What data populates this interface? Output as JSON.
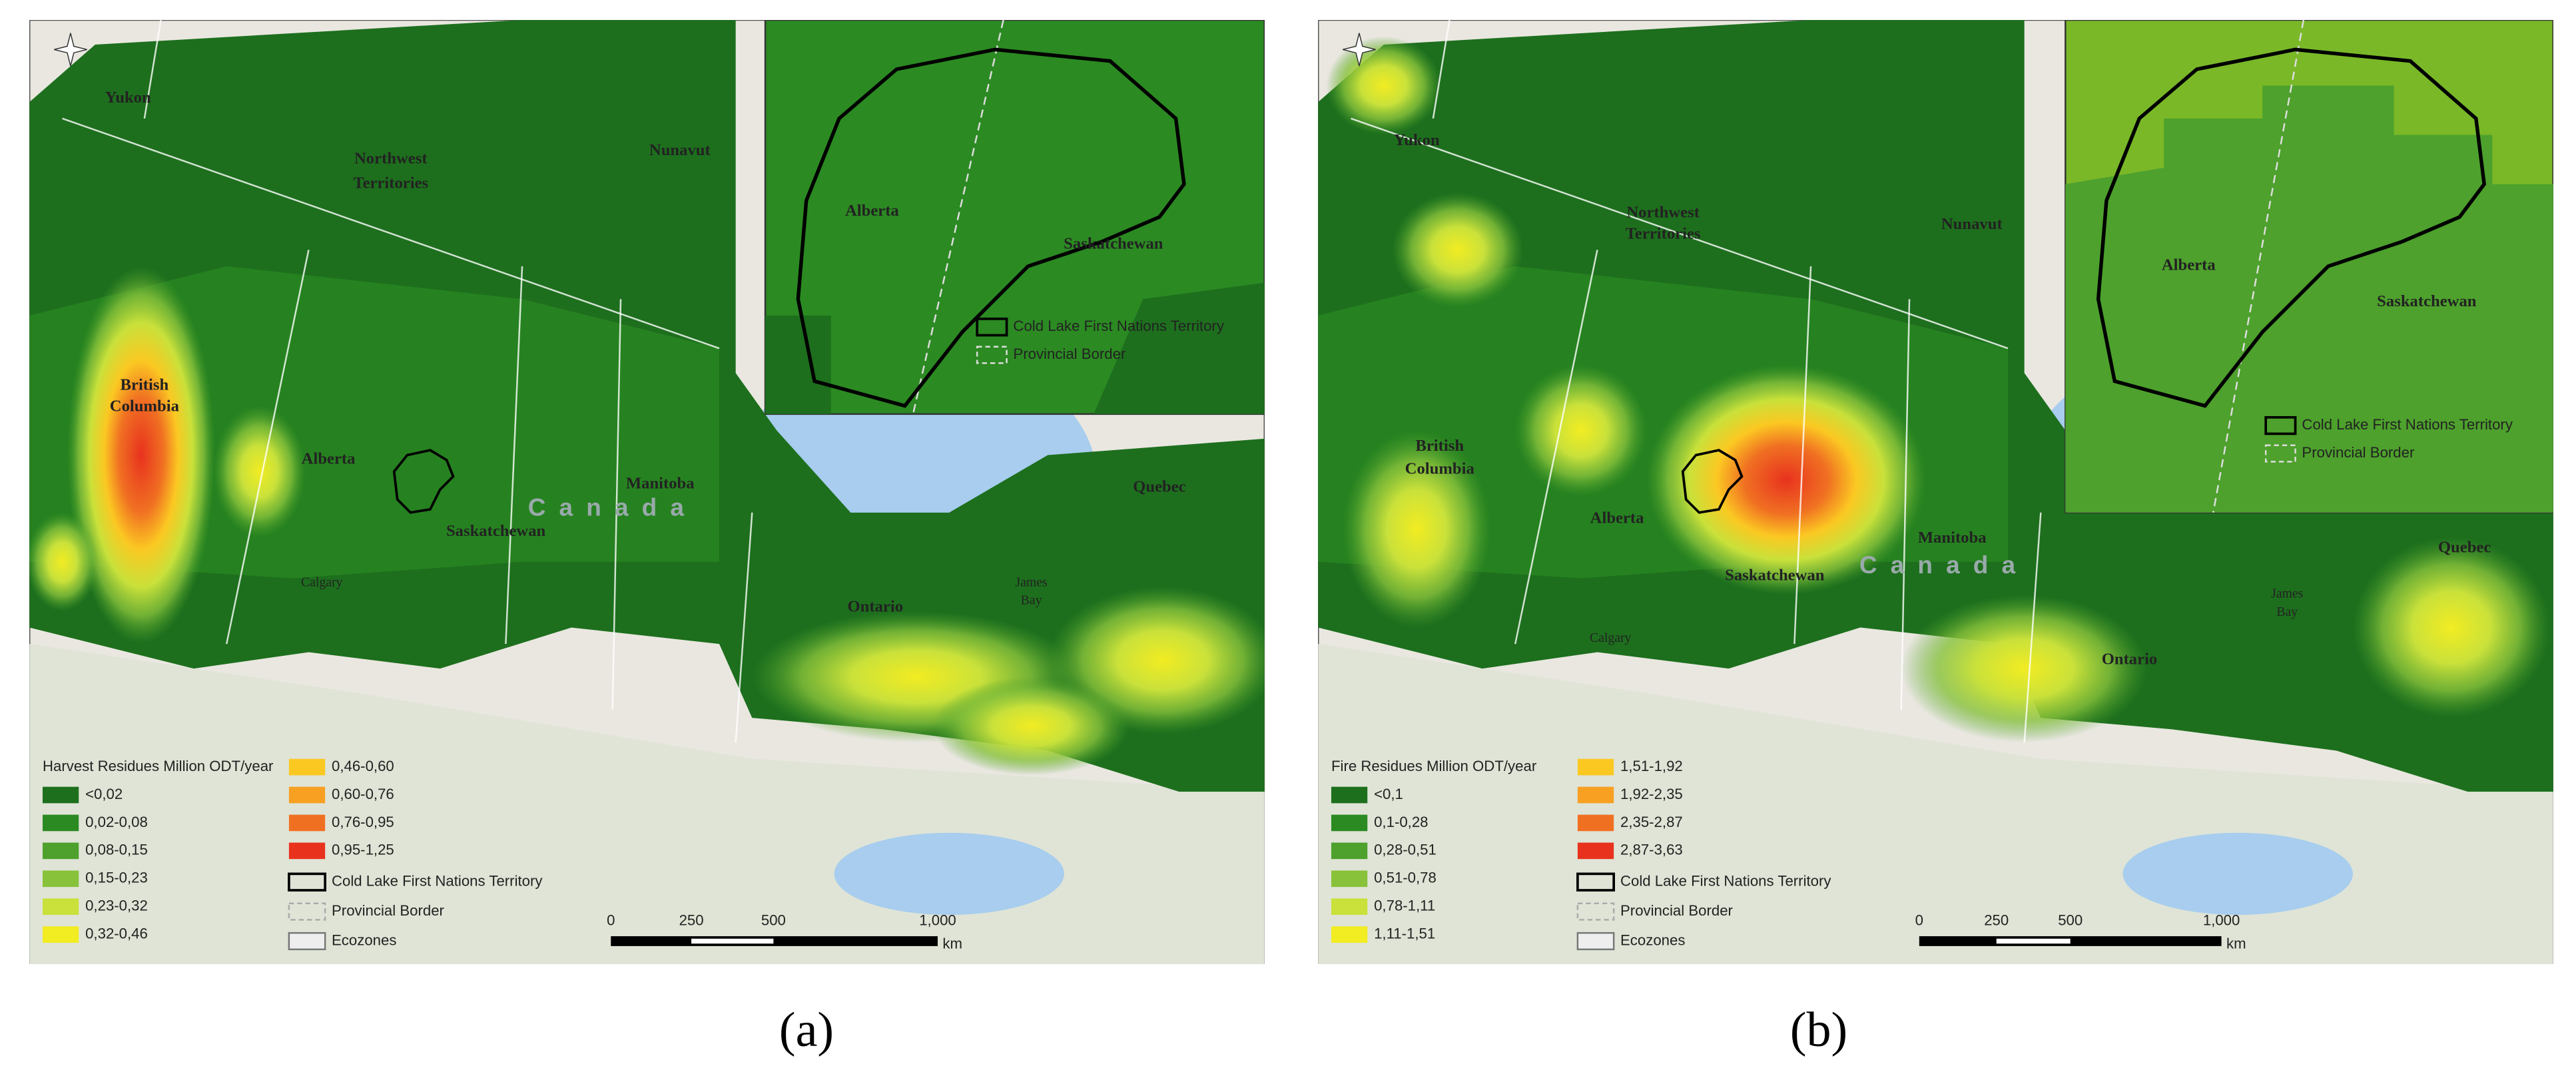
{
  "panels": [
    {
      "caption": "(a)",
      "legend": {
        "title": "Harvest Residues Million ODT/year",
        "classes": [
          {
            "label": "<0,02",
            "color": "#1d6f1d"
          },
          {
            "label": "0,02-0,08",
            "color": "#2b8a22"
          },
          {
            "label": "0,08-0,15",
            "color": "#4da12c"
          },
          {
            "label": "0,15-0,23",
            "color": "#88c23b"
          },
          {
            "label": "0,23-0,32",
            "color": "#c9e13a"
          },
          {
            "label": "0,32-0,46",
            "color": "#f2ec22"
          },
          {
            "label": "0,46-0,60",
            "color": "#fbc822"
          },
          {
            "label": "0,60-0,76",
            "color": "#f7a022"
          },
          {
            "label": "0,76-0,95",
            "color": "#f07022"
          },
          {
            "label": "0,95-1,25",
            "color": "#e8321e"
          }
        ],
        "overlays": [
          "Cold Lake First Nations Territory",
          "Provincial Border",
          "Ecozones"
        ]
      },
      "inset": {
        "labels": [
          "Alberta",
          "Saskatchewan"
        ],
        "legend": [
          "Cold Lake First Nations Territory",
          "Provincial Border"
        ]
      },
      "places": [
        "Yukon",
        "Northwest",
        "Territories",
        "Nunavut",
        "British",
        "Columbia",
        "Alberta",
        "Saskatchewan",
        "Manitoba",
        "C a n a d a",
        "Ontario",
        "Quebec",
        "Calgary",
        "James",
        "Bay"
      ],
      "scale_bar": {
        "labels": [
          "0",
          "250",
          "500",
          "1,000"
        ],
        "unit": "km"
      }
    },
    {
      "caption": "(b)",
      "legend": {
        "title": "Fire Residues Million ODT/year",
        "classes": [
          {
            "label": "<0,1",
            "color": "#1d6f1d"
          },
          {
            "label": "0,1-0,28",
            "color": "#2b8a22"
          },
          {
            "label": "0,28-0,51",
            "color": "#4da12c"
          },
          {
            "label": "0,51-0,78",
            "color": "#88c23b"
          },
          {
            "label": "0,78-1,11",
            "color": "#c9e13a"
          },
          {
            "label": "1,11-1,51",
            "color": "#f2ec22"
          },
          {
            "label": "1,51-1,92",
            "color": "#fbc822"
          },
          {
            "label": "1,92-2,35",
            "color": "#f7a022"
          },
          {
            "label": "2,35-2,87",
            "color": "#f07022"
          },
          {
            "label": "2,87-3,63",
            "color": "#e8321e"
          }
        ],
        "overlays": [
          "Cold Lake First Nations Territory",
          "Provincial Border",
          "Ecozones"
        ]
      },
      "inset": {
        "labels": [
          "Alberta",
          "Saskatchewan"
        ],
        "legend": [
          "Cold Lake First Nations Territory",
          "Provincial Border"
        ]
      },
      "places": [
        "Yukon",
        "Northwest",
        "Territories",
        "Nunavut",
        "British",
        "Columbia",
        "Alberta",
        "Saskatchewan",
        "Manitoba",
        "C a n a d a",
        "Ontario",
        "Quebec",
        "Calgary",
        "James",
        "Bay"
      ],
      "scale_bar": {
        "labels": [
          "0",
          "250",
          "500",
          "1,000"
        ],
        "unit": "km"
      }
    }
  ]
}
